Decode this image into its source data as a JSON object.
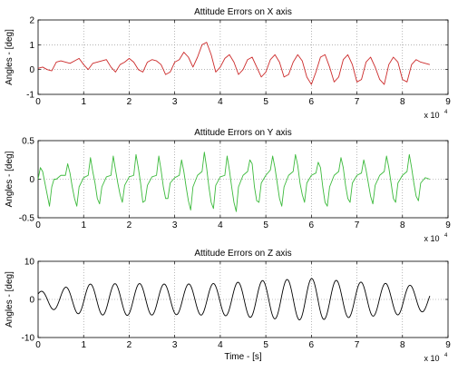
{
  "chart_data": [
    {
      "type": "line",
      "title": "Attitude Errors on X axis",
      "xlabel": "",
      "ylabel": "Angles - [deg]",
      "x_multiplier": "x 10",
      "x_exponent": "4",
      "xlim": [
        0,
        9
      ],
      "ylim": [
        -1,
        2
      ],
      "xticks": [
        0,
        1,
        2,
        3,
        4,
        5,
        6,
        7,
        8,
        9
      ],
      "yticks": [
        -1,
        0,
        1,
        2
      ],
      "grid": true,
      "series": [
        {
          "color": "#cc2a2a",
          "x": [
            0,
            0.1,
            0.2,
            0.3,
            0.4,
            0.5,
            0.6,
            0.7,
            0.8,
            0.9,
            1,
            1.1,
            1.2,
            1.3,
            1.4,
            1.5,
            1.6,
            1.7,
            1.8,
            1.9,
            2,
            2.1,
            2.2,
            2.3,
            2.4,
            2.5,
            2.6,
            2.7,
            2.8,
            2.9,
            3,
            3.1,
            3.2,
            3.3,
            3.4,
            3.5,
            3.6,
            3.7,
            3.8,
            3.9,
            4,
            4.1,
            4.2,
            4.3,
            4.4,
            4.5,
            4.6,
            4.7,
            4.8,
            4.9,
            5,
            5.1,
            5.2,
            5.3,
            5.4,
            5.5,
            5.6,
            5.7,
            5.8,
            5.9,
            6,
            6.1,
            6.2,
            6.3,
            6.4,
            6.5,
            6.6,
            6.7,
            6.8,
            6.9,
            7,
            7.1,
            7.2,
            7.3,
            7.4,
            7.5,
            7.6,
            7.7,
            7.8,
            7.9,
            8,
            8.1,
            8.2,
            8.3,
            8.4,
            8.5,
            8.6
          ],
          "y": [
            0.05,
            0.1,
            0.0,
            -0.05,
            0.3,
            0.35,
            0.3,
            0.25,
            0.35,
            0.45,
            0.2,
            0.0,
            0.25,
            0.3,
            0.35,
            0.4,
            0.1,
            -0.1,
            0.2,
            0.3,
            0.45,
            0.3,
            0.0,
            -0.1,
            0.3,
            0.4,
            0.35,
            0.2,
            -0.2,
            -0.1,
            0.3,
            0.4,
            0.7,
            0.5,
            0.1,
            0.5,
            1.0,
            1.1,
            0.6,
            -0.1,
            0.1,
            0.45,
            0.6,
            0.3,
            -0.2,
            0.0,
            0.4,
            0.5,
            0.1,
            -0.3,
            -0.1,
            0.4,
            0.6,
            0.3,
            -0.3,
            -0.2,
            0.3,
            0.6,
            0.35,
            -0.3,
            -0.6,
            -0.1,
            0.5,
            0.6,
            0.1,
            -0.5,
            -0.3,
            0.4,
            0.6,
            0.2,
            -0.5,
            -0.4,
            0.3,
            0.5,
            0.1,
            -0.4,
            -0.6,
            0.2,
            0.5,
            0.3,
            -0.4,
            -0.5,
            0.2,
            0.4,
            0.3,
            0.25,
            0.2
          ]
        }
      ]
    },
    {
      "type": "line",
      "title": "Attitude Errors on Y axis",
      "xlabel": "",
      "ylabel": "Angles - [deg]",
      "x_multiplier": "x 10",
      "x_exponent": "4",
      "xlim": [
        0,
        9
      ],
      "ylim": [
        -0.5,
        0.5
      ],
      "xticks": [
        0,
        1,
        2,
        3,
        4,
        5,
        6,
        7,
        8,
        9
      ],
      "yticks": [
        -0.5,
        0,
        0.5
      ],
      "grid": true,
      "series": [
        {
          "color": "#3cba3c",
          "x": [
            0,
            0.05,
            0.1,
            0.15,
            0.2,
            0.25,
            0.3,
            0.35,
            0.4,
            0.5,
            0.6,
            0.65,
            0.7,
            0.75,
            0.8,
            0.85,
            0.9,
            1.0,
            1.1,
            1.15,
            1.2,
            1.25,
            1.3,
            1.35,
            1.4,
            1.5,
            1.6,
            1.65,
            1.7,
            1.75,
            1.8,
            1.85,
            1.9,
            2.0,
            2.1,
            2.15,
            2.2,
            2.25,
            2.3,
            2.35,
            2.4,
            2.5,
            2.6,
            2.65,
            2.7,
            2.75,
            2.8,
            2.85,
            2.9,
            3.0,
            3.1,
            3.15,
            3.2,
            3.25,
            3.3,
            3.35,
            3.4,
            3.5,
            3.6,
            3.65,
            3.7,
            3.75,
            3.8,
            3.85,
            3.9,
            4.0,
            4.1,
            4.15,
            4.2,
            4.25,
            4.3,
            4.35,
            4.4,
            4.5,
            4.6,
            4.65,
            4.7,
            4.75,
            4.8,
            4.85,
            4.9,
            5.0,
            5.1,
            5.15,
            5.2,
            5.25,
            5.3,
            5.35,
            5.4,
            5.5,
            5.6,
            5.65,
            5.7,
            5.75,
            5.8,
            5.85,
            5.9,
            6.0,
            6.1,
            6.15,
            6.2,
            6.25,
            6.3,
            6.35,
            6.4,
            6.5,
            6.6,
            6.65,
            6.7,
            6.75,
            6.8,
            6.85,
            6.9,
            7.0,
            7.1,
            7.15,
            7.2,
            7.25,
            7.3,
            7.35,
            7.4,
            7.5,
            7.6,
            7.65,
            7.7,
            7.75,
            7.8,
            7.85,
            7.9,
            8.0,
            8.1,
            8.15,
            8.2,
            8.25,
            8.3,
            8.35,
            8.4,
            8.5,
            8.6
          ],
          "y": [
            0.0,
            0.15,
            0.1,
            -0.05,
            -0.2,
            -0.35,
            -0.1,
            0.0,
            0.0,
            0.05,
            0.05,
            0.2,
            0.08,
            -0.1,
            -0.25,
            -0.35,
            -0.1,
            0.02,
            0.05,
            0.28,
            0.1,
            -0.05,
            -0.25,
            -0.32,
            -0.1,
            0.03,
            0.05,
            0.3,
            0.12,
            -0.05,
            -0.2,
            -0.3,
            -0.08,
            0.03,
            0.05,
            0.32,
            0.15,
            -0.05,
            -0.3,
            -0.28,
            -0.08,
            0.03,
            0.05,
            0.3,
            0.12,
            -0.1,
            -0.25,
            -0.25,
            -0.05,
            0.02,
            0.05,
            0.25,
            0.1,
            -0.1,
            -0.28,
            -0.4,
            -0.1,
            0.05,
            0.1,
            0.35,
            0.15,
            -0.1,
            -0.3,
            -0.38,
            -0.08,
            0.03,
            0.05,
            0.3,
            0.12,
            -0.1,
            -0.3,
            -0.42,
            -0.1,
            0.05,
            0.1,
            0.25,
            0.2,
            -0.1,
            -0.28,
            -0.3,
            -0.05,
            0.05,
            0.12,
            0.3,
            0.15,
            -0.05,
            -0.25,
            -0.35,
            -0.1,
            0.05,
            0.1,
            0.32,
            0.18,
            -0.05,
            -0.2,
            -0.3,
            -0.05,
            0.05,
            0.08,
            0.22,
            0.15,
            -0.1,
            -0.3,
            -0.35,
            -0.1,
            0.05,
            0.1,
            0.28,
            0.15,
            -0.08,
            -0.25,
            -0.3,
            -0.05,
            0.05,
            0.08,
            0.25,
            0.12,
            -0.05,
            -0.22,
            -0.32,
            -0.08,
            0.05,
            0.1,
            0.3,
            0.15,
            -0.05,
            -0.25,
            -0.3,
            -0.05,
            0.05,
            0.1,
            0.32,
            0.15,
            -0.05,
            -0.22,
            -0.28,
            -0.05,
            0.02,
            0.0
          ]
        }
      ]
    },
    {
      "type": "line",
      "title": "Attitude Errors on Z axis",
      "xlabel": "Time - [s]",
      "ylabel": "Angles - [deg]",
      "x_multiplier": "x 10",
      "x_exponent": "4",
      "xlim": [
        0,
        9
      ],
      "ylim": [
        -10,
        10
      ],
      "xticks": [
        0,
        1,
        2,
        3,
        4,
        5,
        6,
        7,
        8,
        9
      ],
      "yticks": [
        -10,
        0,
        10
      ],
      "grid": true,
      "series": [
        {
          "color": "#000000",
          "wave": {
            "x_start": 0,
            "x_end": 8.6,
            "period": 0.54,
            "phase": 0.78,
            "amplitude_points": [
              [
                0,
                2.0
              ],
              [
                1.0,
                4.0
              ],
              [
                2.0,
                4.2
              ],
              [
                3.0,
                4.0
              ],
              [
                4.0,
                4.2
              ],
              [
                5.0,
                5.0
              ],
              [
                6.0,
                5.5
              ],
              [
                7.0,
                4.6
              ],
              [
                8.0,
                4.0
              ],
              [
                8.6,
                3.0
              ]
            ]
          }
        }
      ]
    }
  ]
}
